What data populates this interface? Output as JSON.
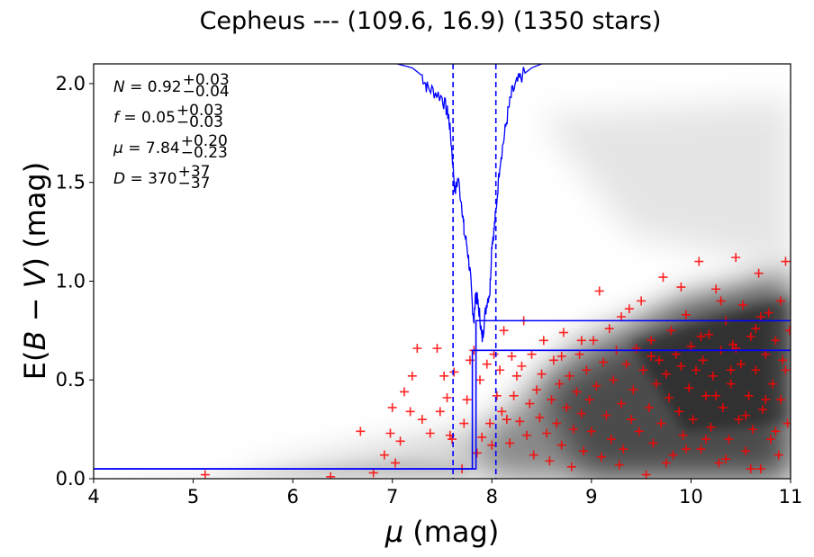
{
  "chart_data": {
    "type": "scatter",
    "title": "Cepheus --- (109.6, 16.9) (1350 stars)",
    "xlabel_italic": "μ",
    "xlabel_unit": " (mag)",
    "ylabel_prefix": "E(",
    "ylabel_italic": "B − V",
    "ylabel_suffix": ") (mag)",
    "xlim": [
      4,
      11
    ],
    "ylim": [
      0,
      2.1
    ],
    "x_ticks": [
      4,
      5,
      6,
      7,
      8,
      9,
      10,
      11
    ],
    "y_ticks": [
      0.0,
      0.5,
      1.0,
      1.5,
      2.0
    ],
    "y_tick_labels": [
      "0.0",
      "0.5",
      "1.0",
      "1.5",
      "2.0"
    ],
    "annotations": [
      {
        "sym": "N",
        "val": " = 0.92",
        "sup": "+0.03",
        "sub": "−0.04"
      },
      {
        "sym": "f",
        "val": " = 0.05",
        "sup": "+0.03",
        "sub": "−0.03"
      },
      {
        "sym": "μ",
        "val": " = 7.84",
        "sup": "+0.20",
        "sub": "−0.23"
      },
      {
        "sym": "D",
        "val": " = 370",
        "sup": "+37",
        "sub": "−37"
      }
    ],
    "model": {
      "foreground_reddening": 0.05,
      "cloud_distance_modulus": 7.84,
      "cloud_reddening_band": [
        0.65,
        0.8
      ],
      "distance_band": [
        7.61,
        8.04
      ]
    },
    "probability_curve": [
      [
        7.05,
        2.1
      ],
      [
        7.2,
        2.08
      ],
      [
        7.3,
        2.04
      ],
      [
        7.35,
        1.98
      ],
      [
        7.42,
        1.96
      ],
      [
        7.5,
        1.93
      ],
      [
        7.55,
        1.86
      ],
      [
        7.57,
        1.82
      ],
      [
        7.6,
        1.65
      ],
      [
        7.63,
        1.45
      ],
      [
        7.66,
        1.52
      ],
      [
        7.7,
        1.38
      ],
      [
        7.72,
        1.25
      ],
      [
        7.75,
        1.18
      ],
      [
        7.78,
        1.05
      ],
      [
        7.8,
        0.9
      ],
      [
        7.82,
        0.8
      ],
      [
        7.84,
        0.95
      ],
      [
        7.86,
        0.88
      ],
      [
        7.88,
        0.82
      ],
      [
        7.9,
        0.7
      ],
      [
        7.92,
        0.78
      ],
      [
        7.95,
        0.9
      ],
      [
        7.98,
        0.95
      ],
      [
        8.0,
        1.2
      ],
      [
        8.02,
        1.25
      ],
      [
        8.04,
        1.35
      ],
      [
        8.08,
        1.6
      ],
      [
        8.12,
        1.72
      ],
      [
        8.16,
        1.85
      ],
      [
        8.2,
        1.95
      ],
      [
        8.25,
        2.0
      ],
      [
        8.3,
        2.04
      ],
      [
        8.4,
        2.08
      ],
      [
        8.5,
        2.1
      ]
    ],
    "stars": [
      [
        5.12,
        0.02
      ],
      [
        6.38,
        0.01
      ],
      [
        6.68,
        0.24
      ],
      [
        6.81,
        0.03
      ],
      [
        6.92,
        0.12
      ],
      [
        6.98,
        0.23
      ],
      [
        7.0,
        0.36
      ],
      [
        7.03,
        0.08
      ],
      [
        7.08,
        0.19
      ],
      [
        7.12,
        0.44
      ],
      [
        7.18,
        0.34
      ],
      [
        7.2,
        0.52
      ],
      [
        7.25,
        0.66
      ],
      [
        7.3,
        0.3
      ],
      [
        7.38,
        0.23
      ],
      [
        7.45,
        0.66
      ],
      [
        7.48,
        0.34
      ],
      [
        7.52,
        0.52
      ],
      [
        7.55,
        0.41
      ],
      [
        7.58,
        0.22
      ],
      [
        7.6,
        0.2
      ],
      [
        7.62,
        0.54
      ],
      [
        7.7,
        0.05
      ],
      [
        7.72,
        0.28
      ],
      [
        7.75,
        0.4
      ],
      [
        7.78,
        0.6
      ],
      [
        7.82,
        0.65
      ],
      [
        7.85,
        0.13
      ],
      [
        7.88,
        0.5
      ],
      [
        7.9,
        0.21
      ],
      [
        7.95,
        0.58
      ],
      [
        7.98,
        0.28
      ],
      [
        8.0,
        0.17
      ],
      [
        8.02,
        0.63
      ],
      [
        8.05,
        0.42
      ],
      [
        8.08,
        0.55
      ],
      [
        8.1,
        0.34
      ],
      [
        8.12,
        0.75
      ],
      [
        8.15,
        0.3
      ],
      [
        8.18,
        0.18
      ],
      [
        8.2,
        0.62
      ],
      [
        8.22,
        0.42
      ],
      [
        8.25,
        0.52
      ],
      [
        8.28,
        0.29
      ],
      [
        8.3,
        0.57
      ],
      [
        8.32,
        0.8
      ],
      [
        8.35,
        0.22
      ],
      [
        8.38,
        0.38
      ],
      [
        8.4,
        0.63
      ],
      [
        8.42,
        0.12
      ],
      [
        8.45,
        0.45
      ],
      [
        8.48,
        0.31
      ],
      [
        8.5,
        0.53
      ],
      [
        8.52,
        0.7
      ],
      [
        8.55,
        0.23
      ],
      [
        8.58,
        0.09
      ],
      [
        8.6,
        0.4
      ],
      [
        8.62,
        0.6
      ],
      [
        8.65,
        0.28
      ],
      [
        8.68,
        0.48
      ],
      [
        8.7,
        0.17
      ],
      [
        8.72,
        0.74
      ],
      [
        8.75,
        0.36
      ],
      [
        8.78,
        0.52
      ],
      [
        8.8,
        0.06
      ],
      [
        8.82,
        0.25
      ],
      [
        8.85,
        0.44
      ],
      [
        8.88,
        0.63
      ],
      [
        8.9,
        0.33
      ],
      [
        8.92,
        0.14
      ],
      [
        8.95,
        0.55
      ],
      [
        8.98,
        0.4
      ],
      [
        9.0,
        0.24
      ],
      [
        9.02,
        0.7
      ],
      [
        9.05,
        0.47
      ],
      [
        9.08,
        0.95
      ],
      [
        9.1,
        0.11
      ],
      [
        9.12,
        0.59
      ],
      [
        9.15,
        0.32
      ],
      [
        9.18,
        0.76
      ],
      [
        9.2,
        0.2
      ],
      [
        9.22,
        0.5
      ],
      [
        9.25,
        0.65
      ],
      [
        9.28,
        0.07
      ],
      [
        9.3,
        0.38
      ],
      [
        9.32,
        0.15
      ],
      [
        9.35,
        0.58
      ],
      [
        9.38,
        0.86
      ],
      [
        9.4,
        0.3
      ],
      [
        9.42,
        0.45
      ],
      [
        9.45,
        0.66
      ],
      [
        9.48,
        0.24
      ],
      [
        9.5,
        0.9
      ],
      [
        9.52,
        0.55
      ],
      [
        9.55,
        0.02
      ],
      [
        9.58,
        0.36
      ],
      [
        9.6,
        0.7
      ],
      [
        9.62,
        0.18
      ],
      [
        9.65,
        0.48
      ],
      [
        9.68,
        0.6
      ],
      [
        9.7,
        0.28
      ],
      [
        9.72,
        1.02
      ],
      [
        9.75,
        0.53
      ],
      [
        9.78,
        0.41
      ],
      [
        9.8,
        0.75
      ],
      [
        9.82,
        0.12
      ],
      [
        9.85,
        0.63
      ],
      [
        9.88,
        0.34
      ],
      [
        9.9,
        0.57
      ],
      [
        9.92,
        0.22
      ],
      [
        9.95,
        0.83
      ],
      [
        9.98,
        0.46
      ],
      [
        10.0,
        0.67
      ],
      [
        10.02,
        0.3
      ],
      [
        10.05,
        0.55
      ],
      [
        10.08,
        1.1
      ],
      [
        10.1,
        0.15
      ],
      [
        10.12,
        0.6
      ],
      [
        10.15,
        0.42
      ],
      [
        10.18,
        0.73
      ],
      [
        10.2,
        0.26
      ],
      [
        10.22,
        0.52
      ],
      [
        10.25,
        0.96
      ],
      [
        10.28,
        0.08
      ],
      [
        10.3,
        0.65
      ],
      [
        10.32,
        0.36
      ],
      [
        10.35,
        0.8
      ],
      [
        10.38,
        0.2
      ],
      [
        10.4,
        0.48
      ],
      [
        10.42,
        0.68
      ],
      [
        10.45,
        1.12
      ],
      [
        10.48,
        0.3
      ],
      [
        10.5,
        0.58
      ],
      [
        10.52,
        0.88
      ],
      [
        10.55,
        0.14
      ],
      [
        10.58,
        0.42
      ],
      [
        10.6,
        0.72
      ],
      [
        10.62,
        0.25
      ],
      [
        10.65,
        0.55
      ],
      [
        10.68,
        1.04
      ],
      [
        10.7,
        0.05
      ],
      [
        10.72,
        0.35
      ],
      [
        10.75,
        0.63
      ],
      [
        10.78,
        0.84
      ],
      [
        10.8,
        0.2
      ],
      [
        10.82,
        0.48
      ],
      [
        10.85,
        0.7
      ],
      [
        10.88,
        0.12
      ],
      [
        10.9,
        0.4
      ],
      [
        10.92,
        0.6
      ],
      [
        10.95,
        1.1
      ],
      [
        10.97,
        0.28
      ],
      [
        10.99,
        0.75
      ],
      [
        10.6,
        0.05
      ],
      [
        10.3,
        0.9
      ],
      [
        9.9,
        0.97
      ],
      [
        10.7,
        0.82
      ],
      [
        10.9,
        0.9
      ],
      [
        10.4,
        0.55
      ],
      [
        10.1,
        0.72
      ],
      [
        9.6,
        0.62
      ],
      [
        9.3,
        0.82
      ],
      [
        8.9,
        0.7
      ],
      [
        8.7,
        0.62
      ],
      [
        10.85,
        0.24
      ],
      [
        10.55,
        0.32
      ],
      [
        10.25,
        0.42
      ],
      [
        9.95,
        0.15
      ],
      [
        9.75,
        0.08
      ],
      [
        10.65,
        0.76
      ],
      [
        10.45,
        0.66
      ],
      [
        10.15,
        0.2
      ],
      [
        10.75,
        0.4
      ],
      [
        10.95,
        0.55
      ],
      [
        10.35,
        0.1
      ]
    ]
  }
}
